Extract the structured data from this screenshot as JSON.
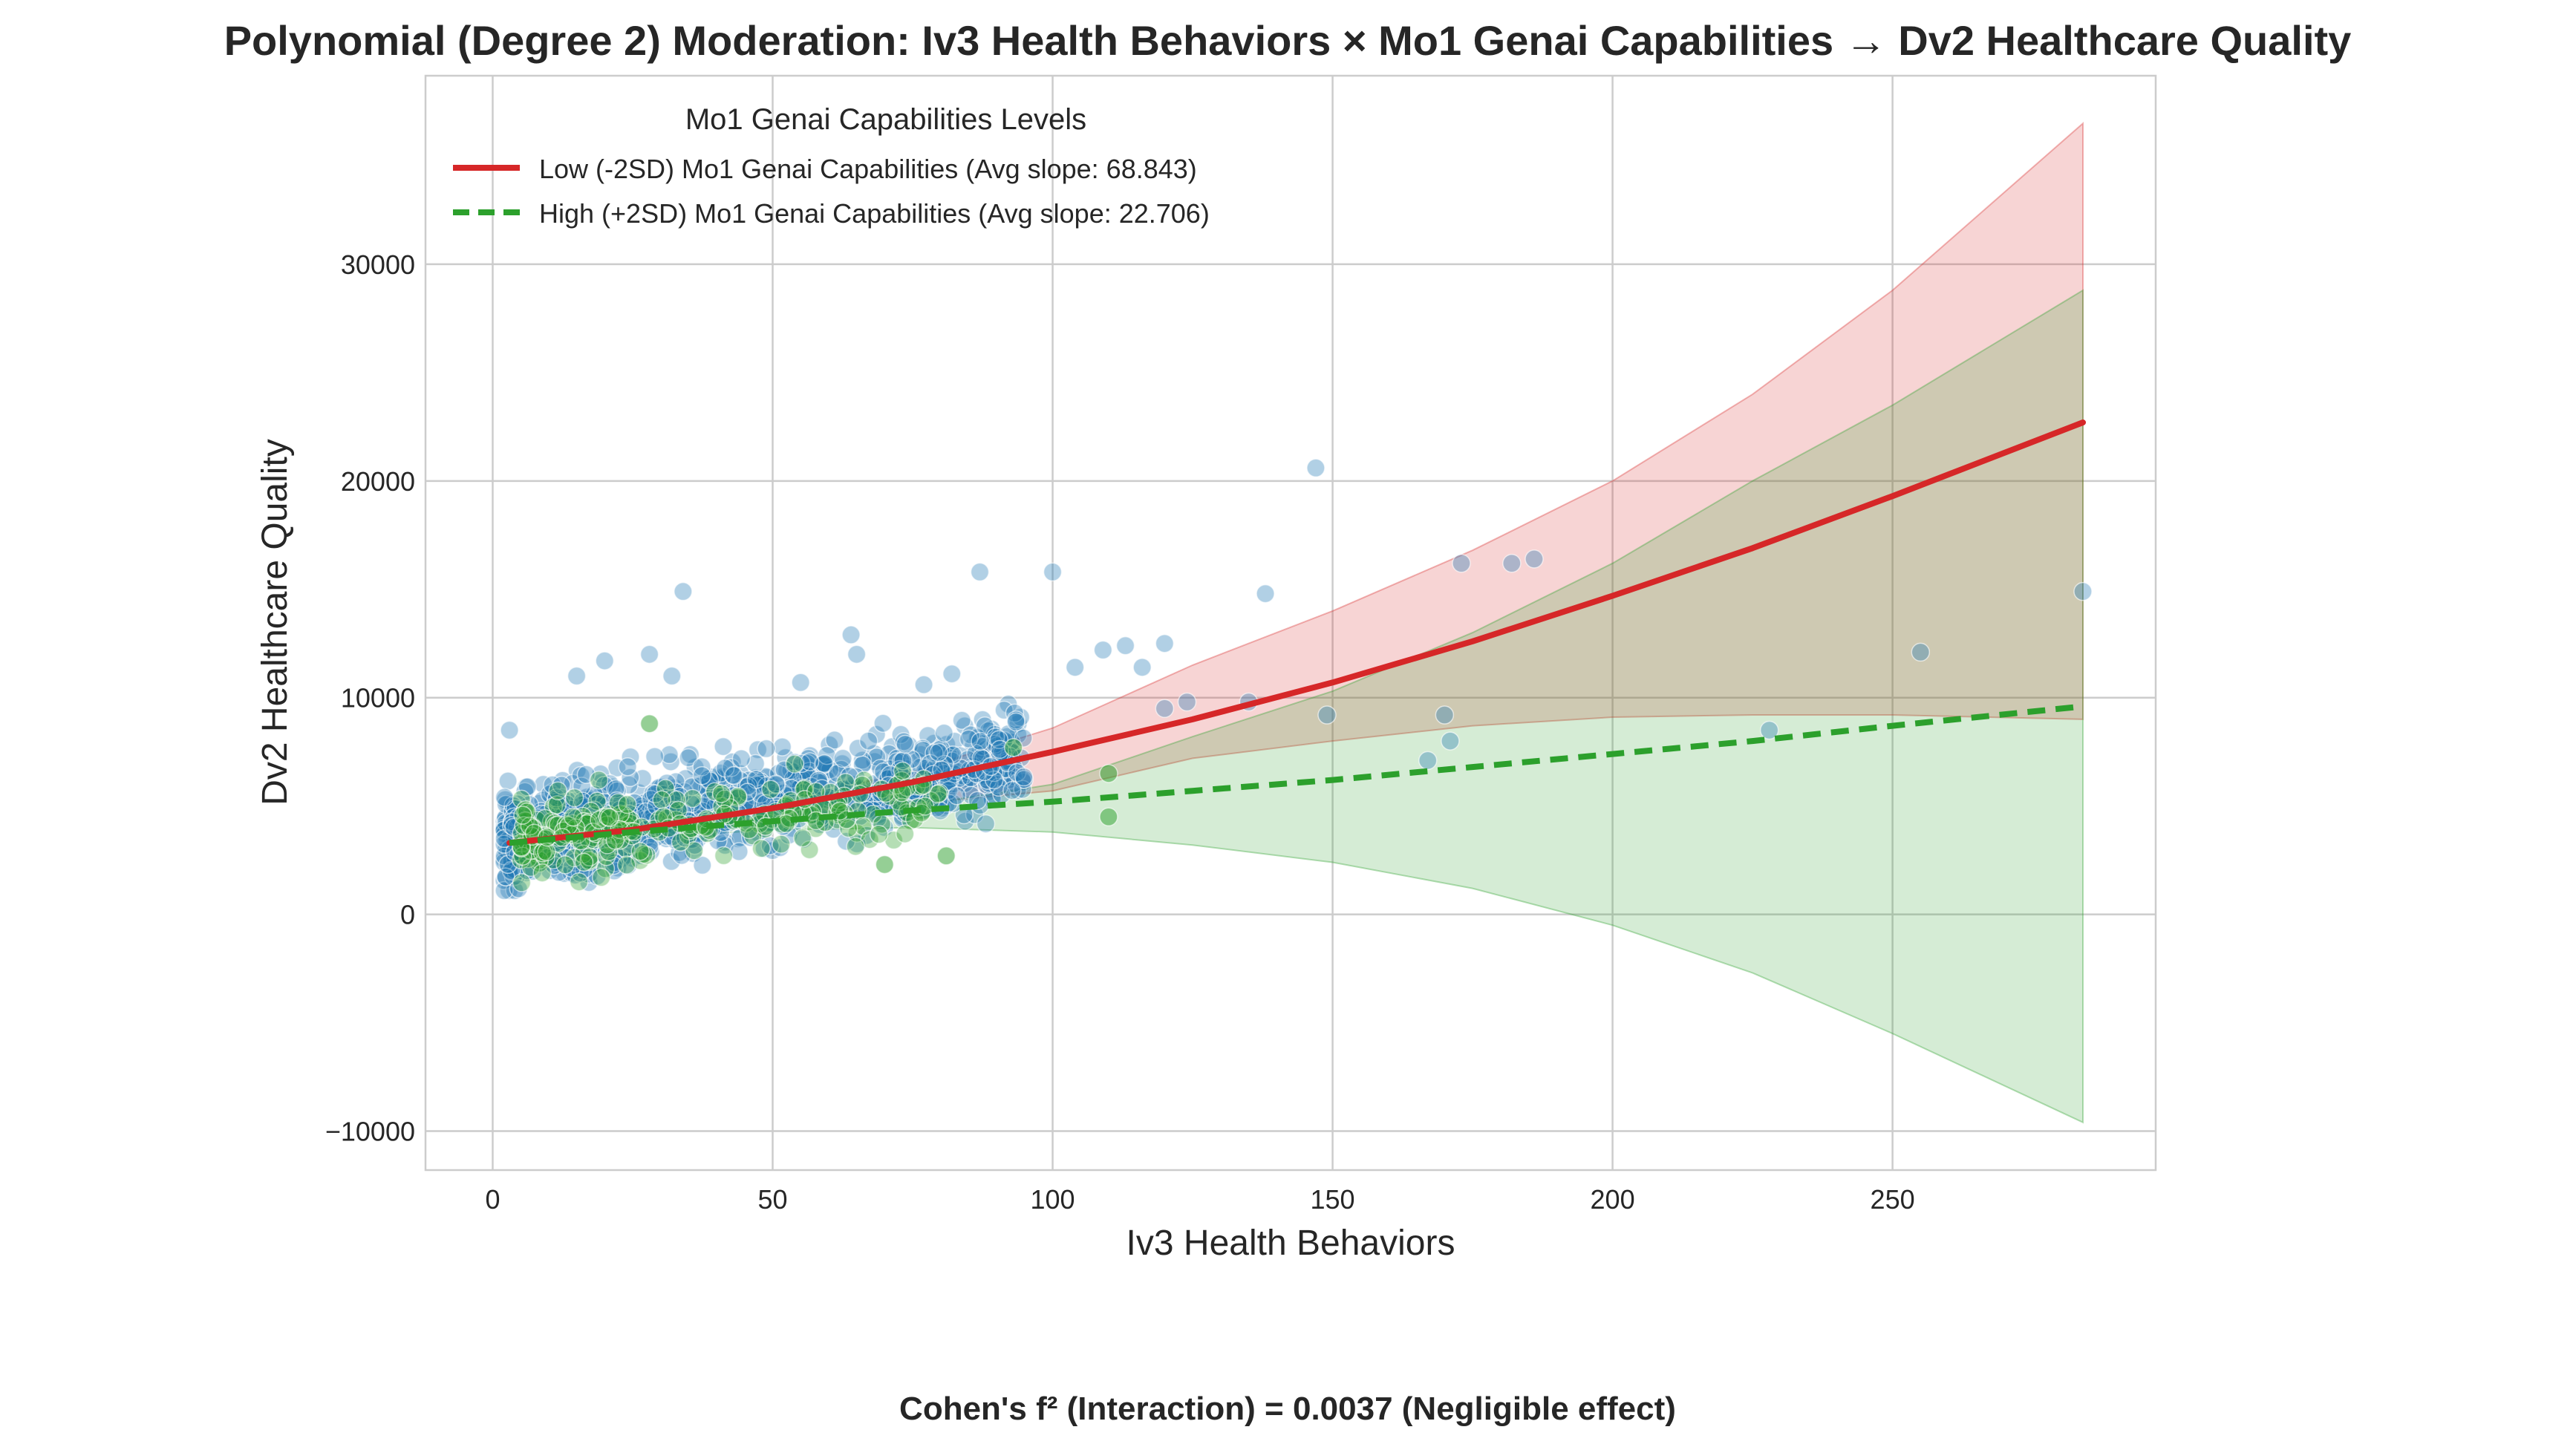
{
  "chart_data": {
    "type": "scatter",
    "title": "Polynomial (Degree 2) Moderation: Iv3 Health Behaviors × Mo1 Genai Capabilities → Dv2 Healthcare Quality",
    "xlabel": "Iv3 Health Behaviors",
    "ylabel": "Dv2 Healthcare Quality",
    "footer": "Cohen's f² (Interaction) = 0.0037 (Negligible effect)",
    "xlim": [
      -12,
      297
    ],
    "ylim": [
      -11800,
      38700
    ],
    "xticks": [
      0,
      50,
      100,
      150,
      200,
      250
    ],
    "yticks": [
      -10000,
      0,
      10000,
      20000,
      30000
    ],
    "xtick_labels": [
      "0",
      "50",
      "100",
      "150",
      "200",
      "250"
    ],
    "ytick_labels": [
      "−10000",
      "0",
      "10000",
      "20000",
      "30000"
    ],
    "grid": true,
    "legend": {
      "title": "Mo1 Genai Capabilities Levels",
      "placement": "top-left",
      "entries": [
        "Low (-2SD) Mo1 Genai Capabilities (Avg slope: 68.843)",
        "High (+2SD) Mo1 Genai Capabilities (Avg slope: 22.706)"
      ]
    },
    "colors": {
      "low": "#d62728",
      "high": "#2ca02c",
      "points_blue": "#1f77b4",
      "points_green": "#2ca02c",
      "low_band": "#f4c5c7",
      "high_band": "#c4e7c0",
      "overlap_band": "#d6c1a5"
    },
    "series": [
      {
        "name": "Low (-2SD) Mo1 Genai Capabilities (Avg slope: 68.843)",
        "style": "solid",
        "x": [
          3,
          25,
          50,
          75,
          100,
          125,
          150,
          175,
          200,
          225,
          250,
          284
        ],
        "y": [
          3300,
          3900,
          4900,
          6100,
          7500,
          9000,
          10700,
          12600,
          14700,
          16900,
          19300,
          22700
        ],
        "ci_lower": [
          2700,
          3600,
          4500,
          5100,
          5700,
          7200,
          8000,
          8700,
          9100,
          9200,
          9200,
          9000
        ],
        "ci_upper": [
          3900,
          4300,
          5200,
          6600,
          8600,
          11500,
          14000,
          16800,
          20000,
          24000,
          28800,
          36500
        ]
      },
      {
        "name": "High (+2SD) Mo1 Genai Capabilities (Avg slope: 22.706)",
        "style": "dashed",
        "x": [
          3,
          25,
          50,
          75,
          100,
          125,
          150,
          175,
          200,
          225,
          250,
          284
        ],
        "y": [
          3300,
          3800,
          4300,
          4800,
          5200,
          5700,
          6200,
          6800,
          7400,
          8000,
          8700,
          9600
        ],
        "ci_lower": [
          3000,
          3500,
          3900,
          4000,
          3800,
          3200,
          2400,
          1200,
          -500,
          -2700,
          -5500,
          -9600
        ],
        "ci_upper": [
          3700,
          4100,
          4500,
          5000,
          6000,
          8200,
          10300,
          13000,
          16200,
          20000,
          23500,
          28800
        ]
      }
    ],
    "scatter_outliers_blue": [
      {
        "x": 147,
        "y": 20600
      },
      {
        "x": 34,
        "y": 14900
      },
      {
        "x": 87,
        "y": 15800
      },
      {
        "x": 100,
        "y": 15800
      },
      {
        "x": 138,
        "y": 14800
      },
      {
        "x": 173,
        "y": 16200
      },
      {
        "x": 182,
        "y": 16200
      },
      {
        "x": 186,
        "y": 16400
      },
      {
        "x": 284,
        "y": 14900
      },
      {
        "x": 255,
        "y": 12100
      },
      {
        "x": 64,
        "y": 12900
      },
      {
        "x": 28,
        "y": 12000
      },
      {
        "x": 20,
        "y": 11700
      },
      {
        "x": 65,
        "y": 12000
      },
      {
        "x": 120,
        "y": 12500
      },
      {
        "x": 113,
        "y": 12400
      },
      {
        "x": 109,
        "y": 12200
      },
      {
        "x": 104,
        "y": 11400
      },
      {
        "x": 116,
        "y": 11400
      },
      {
        "x": 149,
        "y": 9200
      },
      {
        "x": 170,
        "y": 9200
      },
      {
        "x": 171,
        "y": 8000
      },
      {
        "x": 167,
        "y": 7100
      },
      {
        "x": 228,
        "y": 8500
      },
      {
        "x": 124,
        "y": 9800
      },
      {
        "x": 120,
        "y": 9500
      },
      {
        "x": 135,
        "y": 9800
      },
      {
        "x": 3,
        "y": 8500
      },
      {
        "x": 32,
        "y": 11000
      },
      {
        "x": 15,
        "y": 11000
      },
      {
        "x": 82,
        "y": 11100
      },
      {
        "x": 77,
        "y": 10600
      },
      {
        "x": 55,
        "y": 10700
      }
    ],
    "scatter_cluster_blue": {
      "x_range": [
        2,
        95
      ],
      "y_center_start": 3300,
      "slope": 42,
      "y_spread": 2000,
      "count": 1000
    },
    "scatter_cluster_green": {
      "x_range": [
        5,
        80
      ],
      "y_center_start": 3300,
      "slope": 25,
      "y_spread": 1500,
      "count": 260
    },
    "scatter_outliers_green": [
      {
        "x": 70,
        "y": 2300
      },
      {
        "x": 81,
        "y": 2700
      },
      {
        "x": 110,
        "y": 6500
      },
      {
        "x": 110,
        "y": 4500
      },
      {
        "x": 93,
        "y": 7700
      },
      {
        "x": 28,
        "y": 8800
      }
    ]
  }
}
